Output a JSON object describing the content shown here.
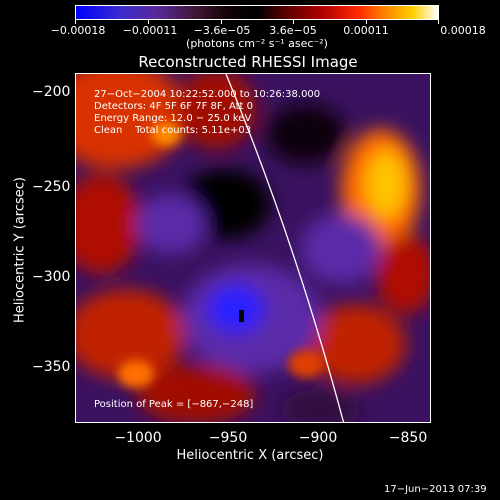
{
  "colorbar": {
    "tick_labels": [
      "−0.00018",
      "−0.00011",
      "−3.6e−05",
      "3.6e−05",
      "0.00011",
      "0.00018"
    ],
    "units_text": "(photons cm⁻² s⁻¹ asec⁻²)"
  },
  "title": "Reconstructed RHESSI Image",
  "info": {
    "time_range": "27−Oct−2004 10:22:52.000 to 10:26:38.000",
    "detectors": "Detectors: 4F 5F 6F 7F 8F, Att 0",
    "energy_range": "Energy Range: 12.0 − 25.0 keV",
    "clean_counts": "Clean    Total counts: 5.11e+03",
    "peak_position": "Position of Peak = [−867,−248]"
  },
  "axes": {
    "ylabel": "Heliocentric Y (arcsec)",
    "xlabel": "Heliocentric X (arcsec)",
    "y_tick_labels": [
      "−200",
      "−250",
      "−300",
      "−350"
    ],
    "x_tick_labels": [
      "−1000",
      "−950",
      "−900",
      "−850"
    ]
  },
  "timestamp": "17−Jun−2013 07:39",
  "colors": {
    "background": "#000000",
    "peak_hot": "#ffcc00",
    "cool_blob": "#5a2aa8",
    "min_blue": "#1a1aff"
  }
}
